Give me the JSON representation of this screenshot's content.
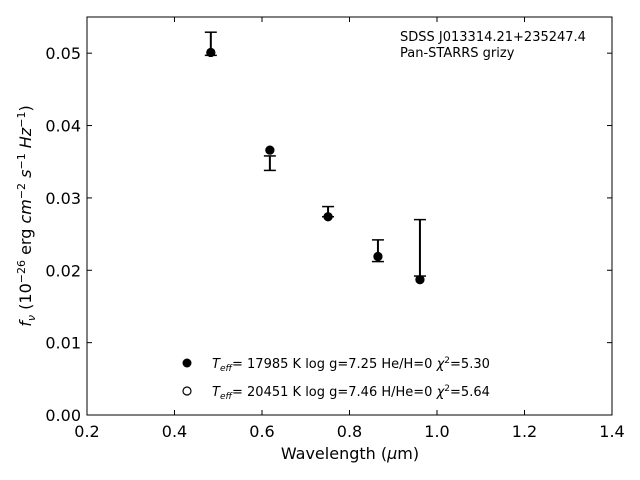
{
  "chart_data": {
    "type": "scatter",
    "xlabel": "Wavelength (μm)",
    "ylabel": "f_ν (10^-26 erg cm^-2 s^-1 Hz^-1)",
    "xlim": [
      0.2,
      1.4
    ],
    "ylim": [
      0,
      0.055
    ],
    "xticks": [
      "0.2",
      "0.4",
      "0.6",
      "0.8",
      "1.0",
      "1.2",
      "1.4"
    ],
    "yticks": [
      "0.00",
      "0.01",
      "0.02",
      "0.03",
      "0.04",
      "0.05"
    ],
    "grid": false,
    "annotation": [
      "SDSS J013314.21+235247.4",
      "Pan-STARRS grizy"
    ],
    "observed": {
      "x": [
        0.483,
        0.618,
        0.751,
        0.865,
        0.961
      ],
      "y": [
        0.0513,
        0.0348,
        0.0281,
        0.0227,
        0.0231
      ],
      "yerr": [
        0.0016,
        0.001,
        0.0007,
        0.0015,
        0.0039
      ],
      "color": "#000000"
    },
    "series": [
      {
        "name": "T_eff= 17985 K  log g=7.25  He/H=0  χ²=5.30",
        "marker": "filled-circle",
        "x": [
          0.483,
          0.618,
          0.751,
          0.865,
          0.961
        ],
        "y": [
          0.0501,
          0.0366,
          0.0274,
          0.0219,
          0.0187
        ]
      },
      {
        "name": "T_eff= 20451 K  log g=7.46  H/He=0  χ²=5.64",
        "marker": "open-circle",
        "x": [
          0.483,
          0.618,
          0.751,
          0.865,
          0.961
        ],
        "y": [
          0.0501,
          0.0366,
          0.0274,
          0.0219,
          0.0187
        ]
      }
    ],
    "legend": {
      "placement": "lower-center",
      "entries": [
        {
          "teff": "17985 K",
          "rest": "log g=7.25  He/H=0",
          "chi_label": "=5.30"
        },
        {
          "teff": "20451 K",
          "rest": "log g=7.46  H/He=0",
          "chi_label": "=5.64"
        }
      ]
    }
  }
}
